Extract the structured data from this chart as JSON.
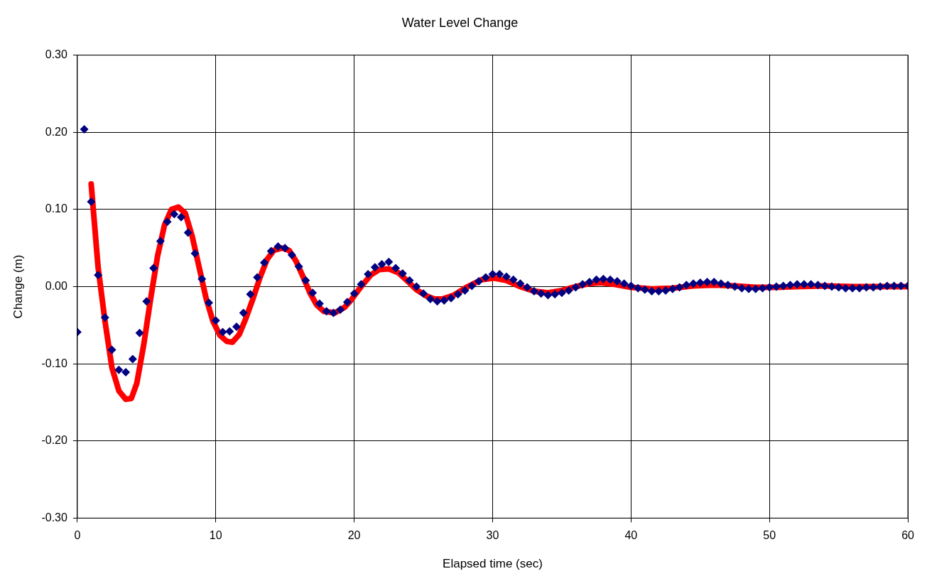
{
  "chart_data": {
    "type": "scatter",
    "title": "Water Level Change",
    "xlabel": "Elapsed time (sec)",
    "ylabel": "Change (m)",
    "xlim": [
      0,
      60
    ],
    "xticks": [
      0,
      10,
      20,
      30,
      40,
      50,
      60
    ],
    "ylim": [
      -0.3,
      0.3
    ],
    "yticks": [
      {
        "value": -0.3,
        "label": "-0.30"
      },
      {
        "value": -0.2,
        "label": "-0.20"
      },
      {
        "value": -0.1,
        "label": "-0.10"
      },
      {
        "value": 0,
        "label": "0.00"
      },
      {
        "value": 0.1,
        "label": "0.10"
      },
      {
        "value": 0.2,
        "label": "0.20"
      },
      {
        "value": 0.3,
        "label": "0.30"
      }
    ],
    "grid": true,
    "legend": false,
    "series": [
      {
        "type": "line",
        "color": "#ff0000",
        "marker": "none",
        "line_style": "solid",
        "x": [
          1,
          1.5,
          2,
          2.5,
          3,
          3.5,
          3.9,
          4.3,
          4.8,
          5.3,
          5.8,
          6.3,
          6.8,
          7.3,
          7.8,
          8.3,
          8.8,
          9.3,
          9.8,
          10.3,
          10.8,
          11.2,
          11.7,
          12.2,
          12.7,
          13.2,
          13.7,
          14.2,
          14.8,
          15.3,
          15.8,
          16.3,
          16.8,
          17.3,
          17.8,
          18.6,
          19.3,
          19.8,
          20.5,
          21.2,
          21.8,
          22.5,
          23.2,
          23.8,
          24.5,
          25.2,
          25.8,
          26.4,
          27.2,
          28.2,
          29.2,
          30.1,
          31,
          32,
          33,
          34,
          35,
          36,
          37,
          37.8,
          38.8,
          40,
          41.5,
          43,
          44.5,
          46,
          47.5,
          49,
          50.5,
          52,
          54,
          56,
          58,
          60
        ],
        "values": [
          0.133,
          0.025,
          -0.045,
          -0.105,
          -0.135,
          -0.146,
          -0.145,
          -0.125,
          -0.075,
          -0.015,
          0.04,
          0.08,
          0.1,
          0.103,
          0.095,
          0.065,
          0.025,
          -0.015,
          -0.045,
          -0.063,
          -0.071,
          -0.072,
          -0.062,
          -0.04,
          -0.015,
          0.012,
          0.035,
          0.047,
          0.05,
          0.047,
          0.033,
          0.013,
          -0.008,
          -0.024,
          -0.032,
          -0.034,
          -0.027,
          -0.017,
          0.0,
          0.015,
          0.022,
          0.023,
          0.018,
          0.008,
          -0.004,
          -0.012,
          -0.016,
          -0.016,
          -0.011,
          0.0,
          0.009,
          0.011,
          0.008,
          0.0,
          -0.006,
          -0.008,
          -0.005,
          0.0,
          0.004,
          0.005,
          0.003,
          -0.001,
          -0.003,
          -0.002,
          0.001,
          0.002,
          0.001,
          -0.001,
          -0.001,
          0.0,
          0.001,
          0.0,
          0.0,
          0.0
        ]
      },
      {
        "type": "scatter",
        "color": "#000080",
        "marker": "diamond",
        "x": [
          0,
          0.5,
          1,
          1.5,
          2,
          2.5,
          3,
          3.5,
          4,
          4.5,
          5,
          5.5,
          6,
          6.5,
          7,
          7.5,
          8,
          8.5,
          9,
          9.5,
          10,
          10.5,
          11,
          11.5,
          12,
          12.5,
          13,
          13.5,
          14,
          14.5,
          15,
          15.5,
          16,
          16.5,
          17,
          17.5,
          18,
          18.5,
          19,
          19.5,
          20,
          20.5,
          21,
          21.5,
          22,
          22.5,
          23,
          23.5,
          24,
          24.5,
          25,
          25.5,
          26,
          26.5,
          27,
          27.5,
          28,
          28.5,
          29,
          29.5,
          30,
          30.5,
          31,
          31.5,
          32,
          32.5,
          33,
          33.5,
          34,
          34.5,
          35,
          35.5,
          36,
          36.5,
          37,
          37.5,
          38,
          38.5,
          39,
          39.5,
          40,
          40.5,
          41,
          41.5,
          42,
          42.5,
          43,
          43.5,
          44,
          44.5,
          45,
          45.5,
          46,
          46.5,
          47,
          47.5,
          48,
          48.5,
          49,
          49.5,
          50,
          50.5,
          51,
          51.5,
          52,
          52.5,
          53,
          53.5,
          54,
          54.5,
          55,
          55.5,
          56,
          56.5,
          57,
          57.5,
          58,
          58.5,
          59,
          59.5,
          60
        ],
        "values": [
          -0.059,
          0.204,
          0.11,
          0.015,
          -0.04,
          -0.082,
          -0.108,
          -0.111,
          -0.094,
          -0.06,
          -0.019,
          0.024,
          0.059,
          0.084,
          0.094,
          0.09,
          0.07,
          0.043,
          0.01,
          -0.021,
          -0.044,
          -0.059,
          -0.058,
          -0.052,
          -0.034,
          -0.01,
          0.012,
          0.031,
          0.046,
          0.052,
          0.05,
          0.041,
          0.026,
          0.008,
          -0.008,
          -0.022,
          -0.032,
          -0.034,
          -0.03,
          -0.02,
          -0.009,
          0.003,
          0.016,
          0.025,
          0.029,
          0.032,
          0.024,
          0.017,
          0.008,
          0.0,
          -0.009,
          -0.016,
          -0.019,
          -0.018,
          -0.015,
          -0.01,
          -0.005,
          0.001,
          0.007,
          0.012,
          0.016,
          0.016,
          0.013,
          0.009,
          0.004,
          -0.001,
          -0.006,
          -0.009,
          -0.011,
          -0.01,
          -0.008,
          -0.005,
          -0.001,
          0.003,
          0.006,
          0.009,
          0.01,
          0.009,
          0.007,
          0.004,
          0.001,
          -0.002,
          -0.004,
          -0.006,
          -0.006,
          -0.005,
          -0.003,
          -0.001,
          0.002,
          0.004,
          0.005,
          0.006,
          0.006,
          0.004,
          0.002,
          0.0,
          -0.002,
          -0.003,
          -0.003,
          -0.002,
          -0.001,
          0.0,
          0.001,
          0.002,
          0.003,
          0.003,
          0.003,
          0.002,
          0.001,
          0.0,
          -0.001,
          -0.002,
          -0.002,
          -0.002,
          -0.001,
          -0.001,
          0.0,
          0.001,
          0.001,
          0.001,
          0.001
        ]
      }
    ]
  }
}
